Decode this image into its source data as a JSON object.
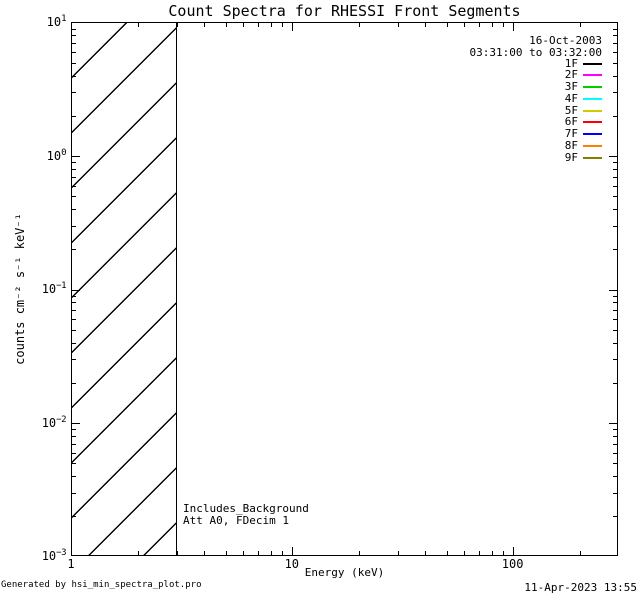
{
  "title": "Count Spectra for RHESSI Front Segments",
  "legend": {
    "date": "16-Oct-2003",
    "time_range": "03:31:00 to 03:32:00",
    "entries": [
      {
        "label": "1F",
        "color": "#000000"
      },
      {
        "label": "2F",
        "color": "#ff00ff"
      },
      {
        "label": "3F",
        "color": "#00cc00"
      },
      {
        "label": "4F",
        "color": "#00ffff"
      },
      {
        "label": "5F",
        "color": "#cccc00"
      },
      {
        "label": "6F",
        "color": "#ff0000"
      },
      {
        "label": "7F",
        "color": "#0000ff"
      },
      {
        "label": "8F",
        "color": "#ff8000"
      },
      {
        "label": "9F",
        "color": "#808000"
      }
    ]
  },
  "annotations": {
    "line1": "Includes_Background",
    "line2": "Att A0, FDecim 1"
  },
  "footer": {
    "left": "Generated by hsi_min_spectra_plot.pro",
    "right": "11-Apr-2023 13:55"
  },
  "chart_data": {
    "type": "line",
    "title": "Count Spectra for RHESSI Front Segments",
    "xlabel": "Energy (keV)",
    "ylabel": "counts cm⁻² s⁻¹ keV⁻¹",
    "xscale": "log",
    "yscale": "log",
    "xlim": [
      1,
      300
    ],
    "ylim": [
      0.001,
      10
    ],
    "grid": false,
    "legend_position": "top-right",
    "x_ticks": [
      {
        "label": "1",
        "value": 1
      },
      {
        "label": "10",
        "value": 10
      },
      {
        "label": "100",
        "value": 100
      }
    ],
    "y_ticks": [
      {
        "base": "10",
        "exp": "1",
        "value": 10
      },
      {
        "base": "10",
        "exp": "0",
        "value": 1
      },
      {
        "base": "10",
        "exp": "-1",
        "value": 0.1
      },
      {
        "base": "10",
        "exp": "-2",
        "value": 0.01
      },
      {
        "base": "10",
        "exp": "-3",
        "value": 0.001
      }
    ],
    "hatched_region": {
      "x_from": 1,
      "x_to": 3,
      "pattern": "diagonal-hatch-45deg"
    },
    "series": []
  }
}
